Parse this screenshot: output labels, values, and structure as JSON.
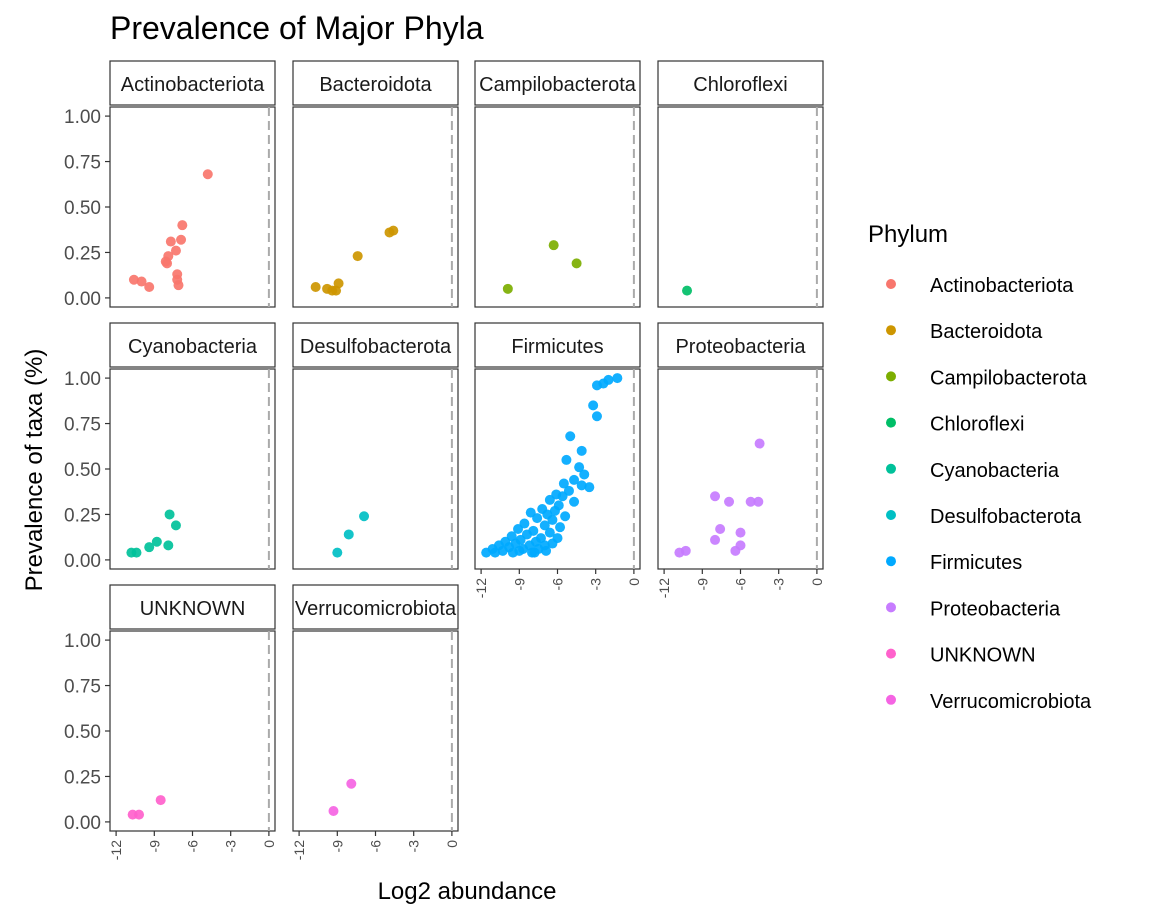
{
  "chart_data": {
    "type": "scatter",
    "title": "Prevalence of Major Phyla",
    "xlabel": "Log2 abundance",
    "ylabel": "Prevalence of taxa (%)",
    "xlim": [
      -12,
      0
    ],
    "ylim": [
      0,
      1
    ],
    "x_ticks": [
      "-12",
      "-9",
      "-6",
      "-3",
      "0"
    ],
    "y_ticks": [
      "0.00",
      "0.25",
      "0.50",
      "0.75",
      "1.00"
    ],
    "reference_line_x": 0,
    "facet_grid": "3 rows x 4 columns",
    "legend_position": "right",
    "legend_title": "Phylum",
    "grid": false,
    "series": [
      {
        "name": "Actinobacteriota",
        "color": "#F8766D",
        "points": [
          [
            -4.8,
            0.68
          ],
          [
            -6.8,
            0.4
          ],
          [
            -6.9,
            0.32
          ],
          [
            -7.7,
            0.31
          ],
          [
            -7.3,
            0.26
          ],
          [
            -7.9,
            0.23
          ],
          [
            -8.1,
            0.2
          ],
          [
            -8.0,
            0.19
          ],
          [
            -7.2,
            0.13
          ],
          [
            -10.6,
            0.1
          ],
          [
            -10.0,
            0.09
          ],
          [
            -7.2,
            0.1
          ],
          [
            -7.1,
            0.07
          ],
          [
            -9.4,
            0.06
          ]
        ]
      },
      {
        "name": "Bacteroidota",
        "color": "#CD9600",
        "points": [
          [
            -4.6,
            0.37
          ],
          [
            -4.9,
            0.36
          ],
          [
            -7.4,
            0.23
          ],
          [
            -8.9,
            0.08
          ],
          [
            -10.7,
            0.06
          ],
          [
            -9.8,
            0.05
          ],
          [
            -9.4,
            0.04
          ],
          [
            -9.1,
            0.04
          ]
        ]
      },
      {
        "name": "Campilobacterota",
        "color": "#7CAE00",
        "points": [
          [
            -6.3,
            0.29
          ],
          [
            -4.5,
            0.19
          ],
          [
            -9.9,
            0.05
          ]
        ]
      },
      {
        "name": "Chloroflexi",
        "color": "#00BE67",
        "points": [
          [
            -10.2,
            0.04
          ]
        ]
      },
      {
        "name": "Cyanobacteria",
        "color": "#00C19A",
        "points": [
          [
            -7.8,
            0.25
          ],
          [
            -7.3,
            0.19
          ],
          [
            -8.8,
            0.1
          ],
          [
            -9.4,
            0.07
          ],
          [
            -7.9,
            0.08
          ],
          [
            -10.4,
            0.04
          ],
          [
            -10.8,
            0.04
          ]
        ]
      },
      {
        "name": "Desulfobacterota",
        "color": "#00BFC4",
        "points": [
          [
            -6.9,
            0.24
          ],
          [
            -8.1,
            0.14
          ],
          [
            -9.0,
            0.04
          ]
        ]
      },
      {
        "name": "Firmicutes",
        "color": "#00A9FF",
        "points": [
          [
            -1.3,
            1.0
          ],
          [
            -2.0,
            0.99
          ],
          [
            -2.4,
            0.97
          ],
          [
            -2.9,
            0.96
          ],
          [
            -3.2,
            0.85
          ],
          [
            -2.9,
            0.79
          ],
          [
            -5.0,
            0.68
          ],
          [
            -4.1,
            0.6
          ],
          [
            -5.3,
            0.55
          ],
          [
            -4.3,
            0.51
          ],
          [
            -3.9,
            0.47
          ],
          [
            -4.7,
            0.44
          ],
          [
            -5.5,
            0.42
          ],
          [
            -4.1,
            0.41
          ],
          [
            -3.5,
            0.4
          ],
          [
            -5.1,
            0.38
          ],
          [
            -6.1,
            0.36
          ],
          [
            -5.6,
            0.35
          ],
          [
            -6.6,
            0.33
          ],
          [
            -4.7,
            0.32
          ],
          [
            -5.9,
            0.3
          ],
          [
            -7.2,
            0.28
          ],
          [
            -6.2,
            0.27
          ],
          [
            -8.1,
            0.26
          ],
          [
            -6.8,
            0.25
          ],
          [
            -5.4,
            0.24
          ],
          [
            -7.6,
            0.23
          ],
          [
            -6.4,
            0.22
          ],
          [
            -8.6,
            0.2
          ],
          [
            -7.0,
            0.19
          ],
          [
            -5.8,
            0.18
          ],
          [
            -9.1,
            0.17
          ],
          [
            -7.9,
            0.16
          ],
          [
            -6.6,
            0.15
          ],
          [
            -8.4,
            0.14
          ],
          [
            -9.6,
            0.13
          ],
          [
            -7.3,
            0.12
          ],
          [
            -6.0,
            0.12
          ],
          [
            -8.9,
            0.11
          ],
          [
            -10.1,
            0.1
          ],
          [
            -7.7,
            0.1
          ],
          [
            -6.4,
            0.09
          ],
          [
            -9.3,
            0.09
          ],
          [
            -10.6,
            0.08
          ],
          [
            -8.2,
            0.08
          ],
          [
            -7.0,
            0.08
          ],
          [
            -9.8,
            0.07
          ],
          [
            -11.1,
            0.06
          ],
          [
            -8.7,
            0.06
          ],
          [
            -7.5,
            0.06
          ],
          [
            -10.3,
            0.05
          ],
          [
            -9.0,
            0.05
          ],
          [
            -11.6,
            0.04
          ],
          [
            -8.0,
            0.04
          ],
          [
            -6.9,
            0.05
          ],
          [
            -9.5,
            0.04
          ],
          [
            -10.9,
            0.04
          ],
          [
            -7.8,
            0.04
          ]
        ]
      },
      {
        "name": "Proteobacteria",
        "color": "#C77CFF",
        "points": [
          [
            -4.5,
            0.64
          ],
          [
            -8.0,
            0.35
          ],
          [
            -4.6,
            0.32
          ],
          [
            -5.2,
            0.32
          ],
          [
            -6.9,
            0.32
          ],
          [
            -7.6,
            0.17
          ],
          [
            -6.0,
            0.15
          ],
          [
            -8.0,
            0.11
          ],
          [
            -6.0,
            0.08
          ],
          [
            -6.4,
            0.05
          ],
          [
            -10.3,
            0.05
          ],
          [
            -10.8,
            0.04
          ]
        ]
      },
      {
        "name": "UNKNOWN",
        "color": "#FF61CC",
        "points": [
          [
            -8.5,
            0.12
          ],
          [
            -10.7,
            0.04
          ],
          [
            -10.2,
            0.04
          ]
        ]
      },
      {
        "name": "Verrucomicrobiota",
        "color": "#F564E3",
        "points": [
          [
            -7.9,
            0.21
          ],
          [
            -9.3,
            0.06
          ]
        ]
      }
    ]
  }
}
